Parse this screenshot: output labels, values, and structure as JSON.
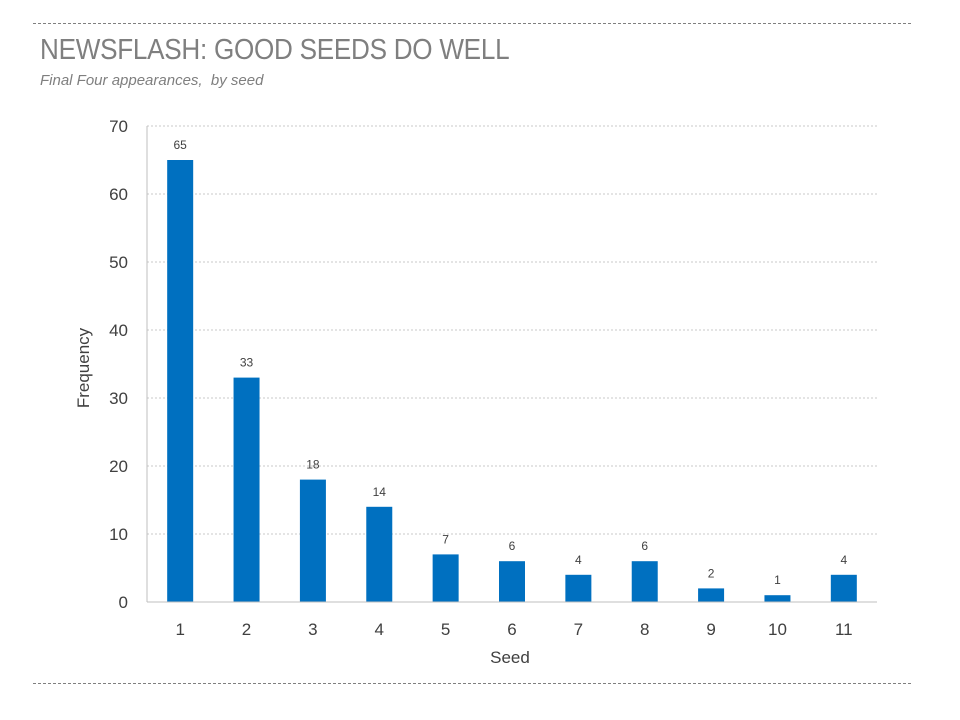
{
  "header": {
    "title": "NEWSFLASH: GOOD SEEDS DO WELL",
    "subtitle": "Final Four appearances,  by seed"
  },
  "colors": {
    "bar": "#0070c0",
    "grid": "#c8c8c8",
    "text": "#404040",
    "title": "#7f7f7f"
  },
  "chart_data": {
    "type": "bar",
    "title": "NEWSFLASH: GOOD SEEDS DO WELL",
    "subtitle": "Final Four appearances,  by seed",
    "xlabel": "Seed",
    "ylabel": "Frequency",
    "categories": [
      "1",
      "2",
      "3",
      "4",
      "5",
      "6",
      "7",
      "8",
      "9",
      "10",
      "11"
    ],
    "values": [
      65,
      33,
      18,
      14,
      7,
      6,
      4,
      6,
      2,
      1,
      4
    ],
    "ylim": [
      0,
      70
    ],
    "yticks": [
      0,
      10,
      20,
      30,
      40,
      50,
      60,
      70
    ],
    "grid": true,
    "data_labels": true
  }
}
